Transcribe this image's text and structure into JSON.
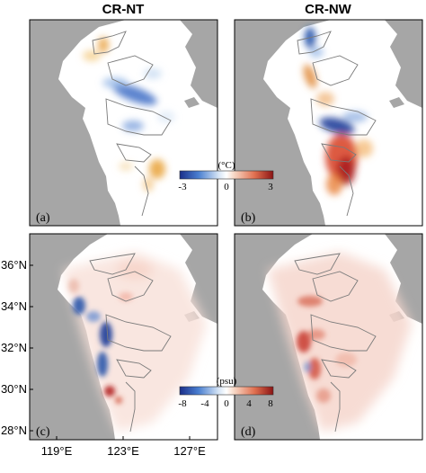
{
  "chart_data": {
    "type": "heatmap",
    "columns": [
      "CR-NT",
      "CR-NW"
    ],
    "panels": [
      {
        "label": "(a)",
        "column": "CR-NT",
        "variable": "temperature",
        "anomaly_min": -3,
        "anomaly_max": 3
      },
      {
        "label": "(b)",
        "column": "CR-NW",
        "variable": "temperature",
        "anomaly_min": -3,
        "anomaly_max": 3
      },
      {
        "label": "(c)",
        "column": "CR-NT",
        "variable": "salinity",
        "anomaly_min": -8,
        "anomaly_max": 8
      },
      {
        "label": "(d)",
        "column": "CR-NW",
        "variable": "salinity",
        "anomaly_min": -8,
        "anomaly_max": 8
      }
    ],
    "colorbars": [
      {
        "unit": "(°C)",
        "ticks": [
          "-3",
          "0",
          "3"
        ]
      },
      {
        "unit": "(psu)",
        "ticks": [
          "-8",
          "-4",
          "0",
          "4",
          "8"
        ]
      }
    ],
    "x_ticks": [
      "119°E",
      "123°E",
      "127°E"
    ],
    "y_ticks": [
      "36°N",
      "34°N",
      "32°N",
      "30°N",
      "28°N"
    ],
    "colors": {
      "land": "#a6a6a6",
      "warm": "#c0392b",
      "cool": "#1f4fa8",
      "contour": "#7a7a7a"
    }
  }
}
